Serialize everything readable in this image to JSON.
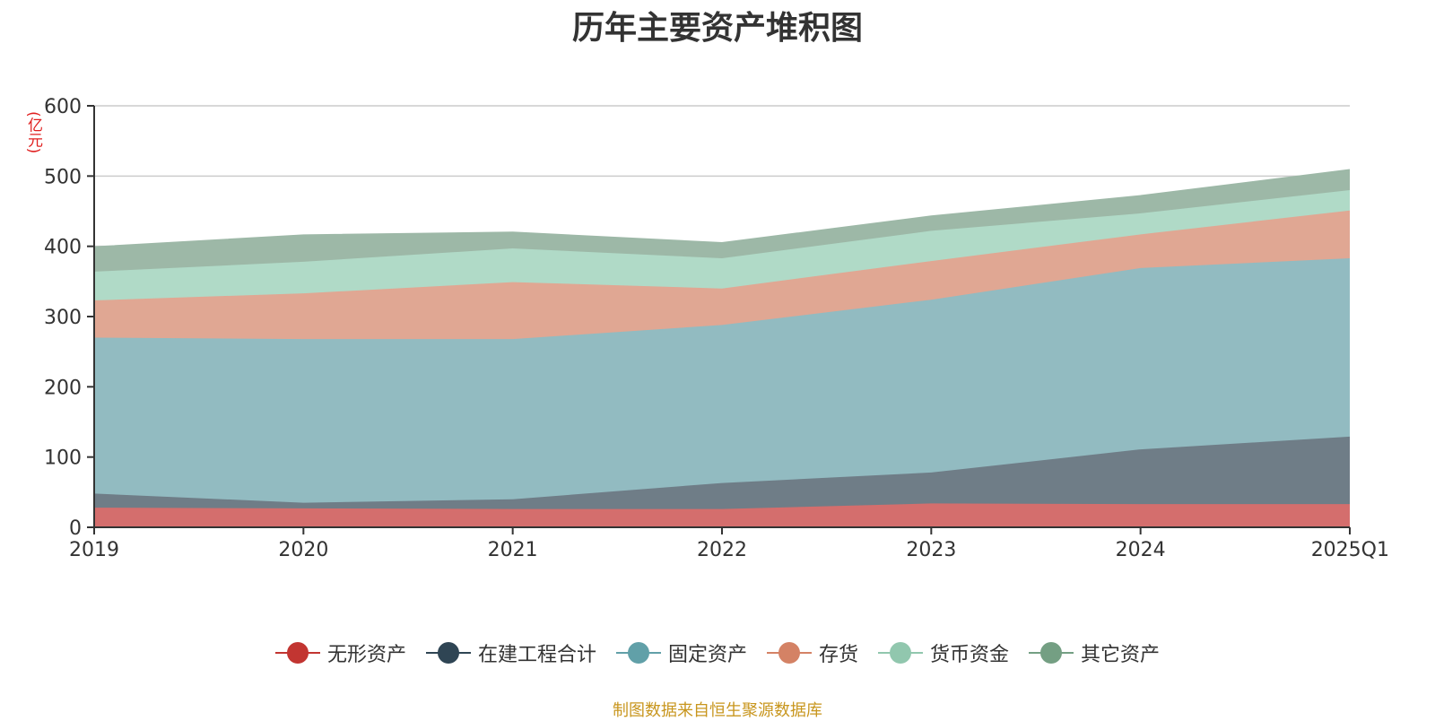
{
  "title": "历年主要资产堆积图",
  "unit_label": "(亿元)",
  "source": "制图数据来自恒生聚源数据库",
  "chart_data": {
    "type": "area",
    "stacked": true,
    "title": "历年主要资产堆积图",
    "ylabel": "(亿元)",
    "categories": [
      "2019",
      "2020",
      "2021",
      "2022",
      "2023",
      "2024",
      "2025Q1"
    ],
    "ylim": [
      0,
      600
    ],
    "yticks": [
      0,
      100,
      200,
      300,
      400,
      500,
      600
    ],
    "grid": true,
    "legend_position": "bottom",
    "series": [
      {
        "name": "无形资产",
        "color": "#c23531",
        "fill": "#d46e6d",
        "values": [
          28,
          27,
          26,
          26,
          34,
          33,
          33
        ]
      },
      {
        "name": "在建工程合计",
        "color": "#2f4554",
        "fill": "#6f7d87",
        "values": [
          20,
          8,
          14,
          37,
          44,
          78,
          96
        ]
      },
      {
        "name": "固定资产",
        "color": "#61a0a8",
        "fill": "#92bbc1",
        "values": [
          222,
          233,
          228,
          225,
          246,
          258,
          254
        ]
      },
      {
        "name": "存货",
        "color": "#d48265",
        "fill": "#e0a793",
        "values": [
          53,
          65,
          81,
          52,
          55,
          48,
          68
        ]
      },
      {
        "name": "货币资金",
        "color": "#91c7ae",
        "fill": "#b0dac7",
        "values": [
          41,
          45,
          48,
          43,
          43,
          30,
          29
        ]
      },
      {
        "name": "其它资产",
        "color": "#749f83",
        "fill": "#9db8a7",
        "values": [
          35,
          38,
          23,
          22,
          21,
          25,
          29
        ]
      }
    ]
  }
}
